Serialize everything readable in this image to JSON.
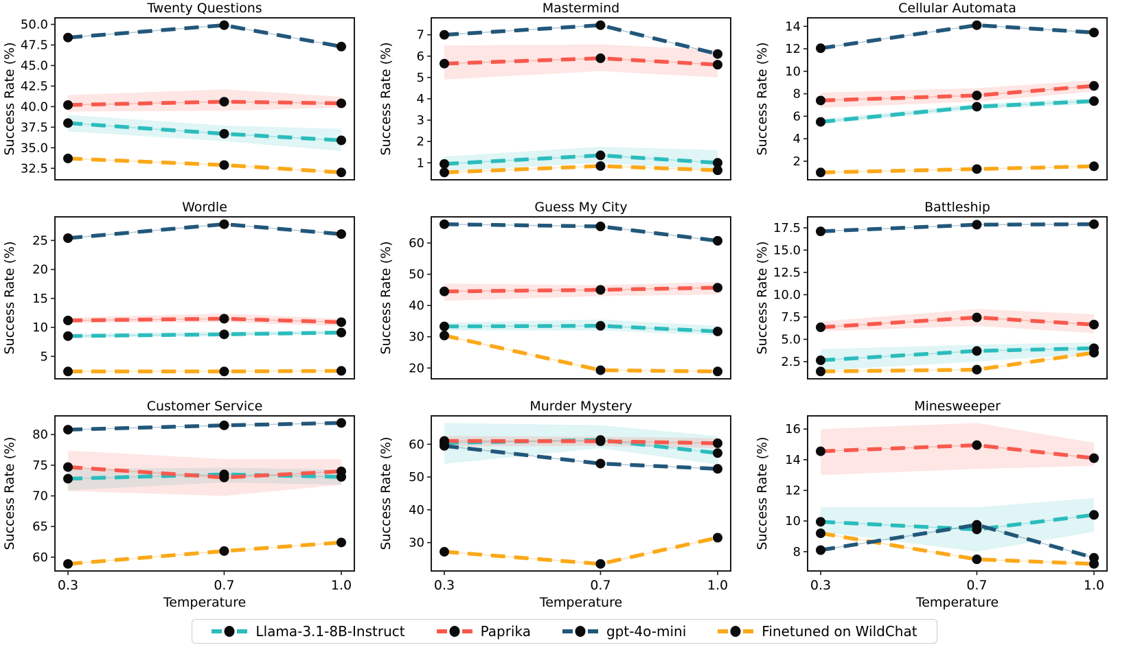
{
  "figure": {
    "xlabel": "Temperature",
    "ylabel": "Success Rate (%)",
    "x_tick_labels": [
      "0.3",
      "0.7",
      "1.0"
    ],
    "x_values": [
      0.3,
      0.7,
      1.0
    ],
    "colors": {
      "llama": "#2CBCBC",
      "paprika": "#F8594D",
      "gpt": "#22577A",
      "wildchat": "#FBA819",
      "marker": "#0b0b0b",
      "axis": "#1a1a1a",
      "legend_border": "#cccccc"
    },
    "legend": [
      {
        "key": "llama",
        "label": "Llama-3.1-8B-Instruct"
      },
      {
        "key": "paprika",
        "label": "Paprika"
      },
      {
        "key": "gpt",
        "label": "gpt-4o-mini"
      },
      {
        "key": "wildchat",
        "label": "Finetuned on WildChat"
      }
    ]
  },
  "chart_data": [
    {
      "type": "line",
      "title": "Twenty Questions",
      "x": [
        0.3,
        0.7,
        1.0
      ],
      "yticks": [
        32.5,
        35.0,
        37.5,
        40.0,
        42.5,
        45.0,
        47.5,
        50.0
      ],
      "ytick_labels": [
        "32.5",
        "35.0",
        "37.5",
        "40.0",
        "42.5",
        "45.0",
        "47.5",
        "50.0"
      ],
      "series": [
        {
          "key": "llama",
          "name": "Llama-3.1-8B-Instruct",
          "values": [
            38.0,
            36.7,
            35.9
          ],
          "band_low": [
            37.0,
            35.8,
            34.6
          ],
          "band_high": [
            39.0,
            37.7,
            37.3
          ]
        },
        {
          "key": "paprika",
          "name": "Paprika",
          "values": [
            40.2,
            40.6,
            40.4
          ],
          "band_low": [
            39.4,
            39.5,
            39.9
          ],
          "band_high": [
            41.4,
            42.1,
            41.2
          ]
        },
        {
          "key": "wildchat",
          "name": "Finetuned on WildChat",
          "values": [
            33.7,
            32.9,
            32.0
          ],
          "band_low": null,
          "band_high": null
        },
        {
          "key": "gpt",
          "name": "gpt-4o-mini",
          "values": [
            48.4,
            49.9,
            47.3
          ],
          "band_low": null,
          "band_high": null
        }
      ]
    },
    {
      "type": "line",
      "title": "Mastermind",
      "x": [
        0.3,
        0.7,
        1.0
      ],
      "yticks": [
        1,
        2,
        3,
        4,
        5,
        6,
        7
      ],
      "ytick_labels": [
        "1",
        "2",
        "3",
        "4",
        "5",
        "6",
        "7"
      ],
      "series": [
        {
          "key": "llama",
          "name": "Llama-3.1-8B-Instruct",
          "values": [
            0.95,
            1.35,
            1.0
          ],
          "band_low": [
            0.6,
            1.0,
            0.65
          ],
          "band_high": [
            1.3,
            1.75,
            1.6
          ]
        },
        {
          "key": "paprika",
          "name": "Paprika",
          "values": [
            5.65,
            5.9,
            5.6
          ],
          "band_low": [
            4.9,
            5.3,
            5.0
          ],
          "band_high": [
            6.5,
            6.55,
            6.3
          ]
        },
        {
          "key": "wildchat",
          "name": "Finetuned on WildChat",
          "values": [
            0.55,
            0.85,
            0.65
          ],
          "band_low": null,
          "band_high": null
        },
        {
          "key": "gpt",
          "name": "gpt-4o-mini",
          "values": [
            7.0,
            7.45,
            6.1
          ],
          "band_low": null,
          "band_high": null
        }
      ]
    },
    {
      "type": "line",
      "title": "Cellular Automata",
      "x": [
        0.3,
        0.7,
        1.0
      ],
      "yticks": [
        2,
        4,
        6,
        8,
        10,
        12,
        14
      ],
      "ytick_labels": [
        "2",
        "4",
        "6",
        "8",
        "10",
        "12",
        "14"
      ],
      "series": [
        {
          "key": "llama",
          "name": "Llama-3.1-8B-Instruct",
          "values": [
            5.5,
            6.85,
            7.35
          ],
          "band_low": [
            5.3,
            6.6,
            7.1
          ],
          "band_high": [
            5.75,
            7.1,
            7.6
          ]
        },
        {
          "key": "paprika",
          "name": "Paprika",
          "values": [
            7.4,
            7.85,
            8.7
          ],
          "band_low": [
            6.75,
            7.3,
            8.2
          ],
          "band_high": [
            8.1,
            8.5,
            9.2
          ]
        },
        {
          "key": "wildchat",
          "name": "Finetuned on WildChat",
          "values": [
            1.0,
            1.3,
            1.55
          ],
          "band_low": null,
          "band_high": null
        },
        {
          "key": "gpt",
          "name": "gpt-4o-mini",
          "values": [
            12.05,
            14.1,
            13.45
          ],
          "band_low": null,
          "band_high": null
        }
      ]
    },
    {
      "type": "line",
      "title": "Wordle",
      "x": [
        0.3,
        0.7,
        1.0
      ],
      "yticks": [
        5,
        10,
        15,
        20,
        25
      ],
      "ytick_labels": [
        "5",
        "10",
        "15",
        "20",
        "25"
      ],
      "series": [
        {
          "key": "llama",
          "name": "Llama-3.1-8B-Instruct",
          "values": [
            8.5,
            8.8,
            9.1
          ],
          "band_low": [
            8.2,
            8.5,
            8.8
          ],
          "band_high": [
            8.9,
            9.3,
            9.5
          ]
        },
        {
          "key": "paprika",
          "name": "Paprika",
          "values": [
            11.2,
            11.5,
            10.9
          ],
          "band_low": [
            10.8,
            10.9,
            10.2
          ],
          "band_high": [
            11.7,
            12.4,
            11.5
          ]
        },
        {
          "key": "wildchat",
          "name": "Finetuned on WildChat",
          "values": [
            2.4,
            2.4,
            2.5
          ],
          "band_low": null,
          "band_high": null
        },
        {
          "key": "gpt",
          "name": "gpt-4o-mini",
          "values": [
            25.4,
            27.8,
            26.1
          ],
          "band_low": null,
          "band_high": null
        }
      ]
    },
    {
      "type": "line",
      "title": "Guess My City",
      "x": [
        0.3,
        0.7,
        1.0
      ],
      "yticks": [
        20,
        30,
        40,
        50,
        60
      ],
      "ytick_labels": [
        "20",
        "30",
        "40",
        "50",
        "60"
      ],
      "series": [
        {
          "key": "llama",
          "name": "Llama-3.1-8B-Instruct",
          "values": [
            33.3,
            33.5,
            31.7
          ],
          "band_low": [
            32.0,
            32.0,
            30.5
          ],
          "band_high": [
            34.5,
            35.5,
            33.5
          ]
        },
        {
          "key": "paprika",
          "name": "Paprika",
          "values": [
            44.5,
            45.0,
            45.7
          ],
          "band_low": [
            41.5,
            43.0,
            43.5
          ],
          "band_high": [
            47.0,
            46.5,
            47.5
          ]
        },
        {
          "key": "wildchat",
          "name": "Finetuned on WildChat",
          "values": [
            30.4,
            19.3,
            18.9
          ],
          "band_low": null,
          "band_high": null
        },
        {
          "key": "gpt",
          "name": "gpt-4o-mini",
          "values": [
            66.0,
            65.3,
            60.7
          ],
          "band_low": null,
          "band_high": null
        }
      ]
    },
    {
      "type": "line",
      "title": "Battleship",
      "x": [
        0.3,
        0.7,
        1.0
      ],
      "yticks": [
        2.5,
        5.0,
        7.5,
        10.0,
        12.5,
        15.0,
        17.5
      ],
      "ytick_labels": [
        "2.5",
        "5.0",
        "7.5",
        "10.0",
        "12.5",
        "15.0",
        "17.5"
      ],
      "series": [
        {
          "key": "llama",
          "name": "Llama-3.1-8B-Instruct",
          "values": [
            2.65,
            3.7,
            4.0
          ],
          "band_low": [
            1.5,
            2.5,
            3.4
          ],
          "band_high": [
            3.9,
            4.4,
            4.65
          ]
        },
        {
          "key": "paprika",
          "name": "Paprika",
          "values": [
            6.35,
            7.45,
            6.65
          ],
          "band_low": [
            5.9,
            6.5,
            5.7
          ],
          "band_high": [
            7.0,
            8.4,
            7.8
          ]
        },
        {
          "key": "wildchat",
          "name": "Finetuned on WildChat",
          "values": [
            1.4,
            1.6,
            3.5
          ],
          "band_low": null,
          "band_high": null
        },
        {
          "key": "gpt",
          "name": "gpt-4o-mini",
          "values": [
            17.1,
            17.85,
            17.9
          ],
          "band_low": null,
          "band_high": null
        }
      ]
    },
    {
      "type": "line",
      "title": "Customer Service",
      "x": [
        0.3,
        0.7,
        1.0
      ],
      "yticks": [
        60,
        65,
        70,
        75,
        80
      ],
      "ytick_labels": [
        "60",
        "65",
        "70",
        "75",
        "80"
      ],
      "series": [
        {
          "key": "llama",
          "name": "Llama-3.1-8B-Instruct",
          "values": [
            72.8,
            73.5,
            73.1
          ],
          "band_low": [
            70.9,
            72.2,
            71.8
          ],
          "band_high": [
            74.4,
            74.6,
            74.3
          ]
        },
        {
          "key": "paprika",
          "name": "Paprika",
          "values": [
            74.7,
            73.0,
            74.0
          ],
          "band_low": [
            70.8,
            70.0,
            71.8
          ],
          "band_high": [
            77.4,
            76.0,
            76.0
          ]
        },
        {
          "key": "wildchat",
          "name": "Finetuned on WildChat",
          "values": [
            58.9,
            61.0,
            62.4
          ],
          "band_low": null,
          "band_high": null
        },
        {
          "key": "gpt",
          "name": "gpt-4o-mini",
          "values": [
            80.8,
            81.5,
            81.9
          ],
          "band_low": null,
          "band_high": null
        }
      ]
    },
    {
      "type": "line",
      "title": "Murder Mystery",
      "x": [
        0.3,
        0.7,
        1.0
      ],
      "yticks": [
        30,
        40,
        50,
        60
      ],
      "ytick_labels": [
        "30",
        "40",
        "50",
        "60"
      ],
      "series": [
        {
          "key": "llama",
          "name": "Llama-3.1-8B-Instruct",
          "values": [
            60.4,
            61.3,
            57.3
          ],
          "band_low": [
            54.0,
            58.8,
            53.8
          ],
          "band_high": [
            66.5,
            65.8,
            62.5
          ]
        },
        {
          "key": "paprika",
          "name": "Paprika",
          "values": [
            61.0,
            60.9,
            60.3
          ],
          "band_low": [
            59.3,
            59.5,
            58.8
          ],
          "band_high": [
            62.5,
            62.3,
            61.8
          ]
        },
        {
          "key": "wildchat",
          "name": "Finetuned on WildChat",
          "values": [
            27.2,
            23.5,
            31.5
          ],
          "band_low": null,
          "band_high": null
        },
        {
          "key": "gpt",
          "name": "gpt-4o-mini",
          "values": [
            59.5,
            54.1,
            52.5
          ],
          "band_low": null,
          "band_high": null
        }
      ]
    },
    {
      "type": "line",
      "title": "Minesweeper",
      "x": [
        0.3,
        0.7,
        1.0
      ],
      "yticks": [
        8,
        10,
        12,
        14,
        16
      ],
      "ytick_labels": [
        "8",
        "10",
        "12",
        "14",
        "16"
      ],
      "series": [
        {
          "key": "llama",
          "name": "Llama-3.1-8B-Instruct",
          "values": [
            9.95,
            9.45,
            10.4
          ],
          "band_low": [
            9.3,
            8.0,
            9.3
          ],
          "band_high": [
            10.9,
            10.9,
            11.5
          ]
        },
        {
          "key": "paprika",
          "name": "Paprika",
          "values": [
            14.55,
            14.95,
            14.1
          ],
          "band_low": [
            13.0,
            13.4,
            13.6
          ],
          "band_high": [
            16.0,
            16.4,
            15.1
          ]
        },
        {
          "key": "wildchat",
          "name": "Finetuned on WildChat",
          "values": [
            9.2,
            7.5,
            7.2
          ],
          "band_low": null,
          "band_high": null
        },
        {
          "key": "gpt",
          "name": "gpt-4o-mini",
          "values": [
            8.1,
            9.75,
            7.6
          ],
          "band_low": null,
          "band_high": null
        }
      ]
    }
  ]
}
